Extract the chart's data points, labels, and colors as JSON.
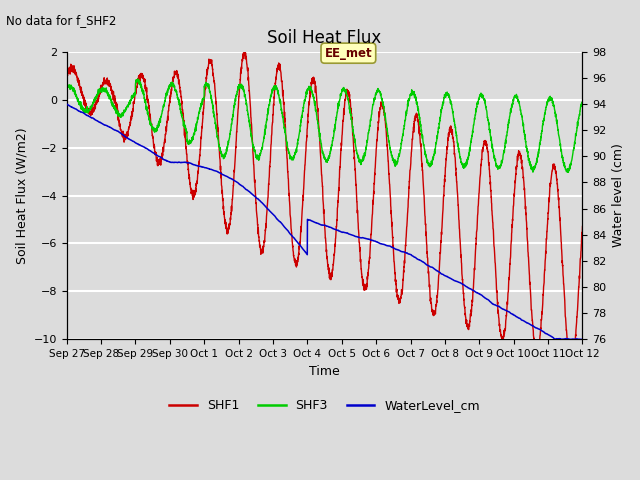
{
  "title": "Soil Heat Flux",
  "subtitle": "No data for f_SHF2",
  "xlabel": "Time",
  "ylabel_left": "Soil Heat Flux (W/m2)",
  "ylabel_right": "Water level (cm)",
  "ylim_left": [
    -10,
    2
  ],
  "ylim_right": [
    76,
    98
  ],
  "yticks_left": [
    -10,
    -8,
    -6,
    -4,
    -2,
    0,
    2
  ],
  "yticks_right": [
    76,
    78,
    80,
    82,
    84,
    86,
    88,
    90,
    92,
    94,
    96,
    98
  ],
  "bg_color": "#dcdcdc",
  "shf1_color": "#cc0000",
  "shf3_color": "#00cc00",
  "water_color": "#0000cc",
  "ee_met_box_color": "#ffffbb",
  "ee_met_box_edge": "#999933",
  "xtick_labels": [
    "Sep 27",
    "Sep 28",
    "Sep 29",
    "Sep 30",
    "Oct 1",
    "Oct 2",
    "Oct 3",
    "Oct 4",
    "Oct 5",
    "Oct 6",
    "Oct 7",
    "Oct 8",
    "Oct 9",
    "Oct 10",
    "Oct 11",
    "Oct 12"
  ]
}
